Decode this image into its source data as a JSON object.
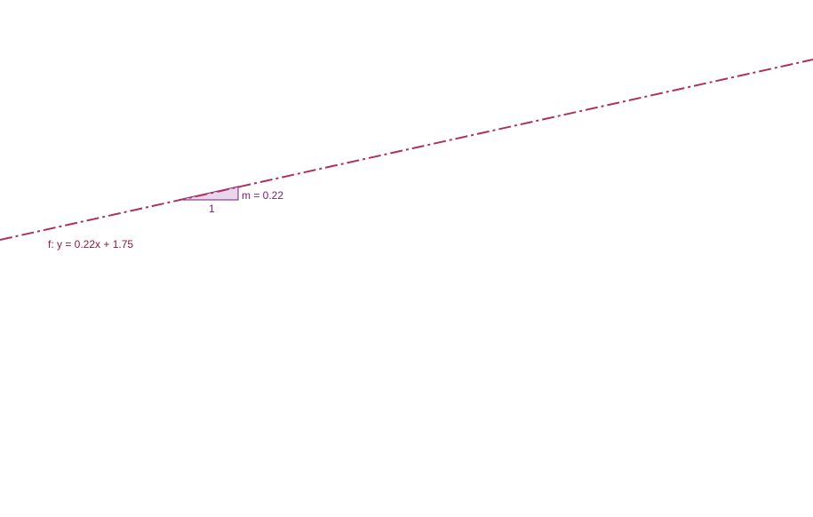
{
  "graphics_view": {
    "line": {
      "name": "f",
      "equation_label": "f: y = 0.22x + 1.75",
      "slope": 0.22,
      "intercept": 1.75,
      "color": "#b03060",
      "style": "dash-dot"
    },
    "slope_triangle": {
      "run_label": "1",
      "slope_label": "m = 0.22",
      "color": "#7b1b7e",
      "fill": "#ead6ec"
    }
  }
}
